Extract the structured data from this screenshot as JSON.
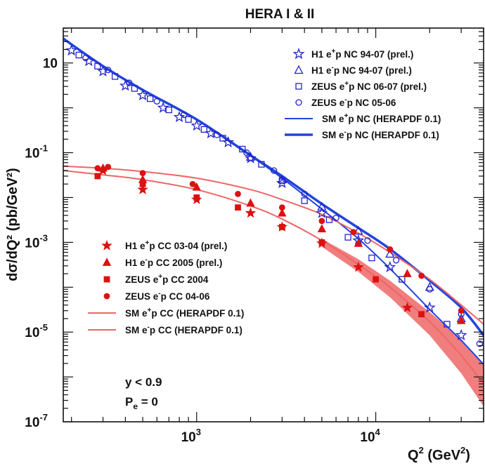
{
  "chart_data": {
    "type": "scatter",
    "title": "HERA I & II",
    "xlabel": "Q",
    "xlabel_sup": "2",
    "xlabel_unit": " (GeV",
    "xlabel_unit_sup": "2",
    "xlabel_close": ")",
    "ylabel": "dσ/dQ² (pb/GeV²)",
    "xscale": "log",
    "yscale": "log",
    "xlim": [
      180,
      40000
    ],
    "ylim": [
      1e-07,
      60
    ],
    "legend_placement_nc": "top-right",
    "legend_placement_cc": "bottom-left",
    "x_ticks": [
      {
        "value": 1000,
        "base": "10",
        "exp": "3"
      },
      {
        "value": 10000,
        "base": "10",
        "exp": "4"
      }
    ],
    "y_ticks": [
      {
        "value": 10,
        "label": "10",
        "exp": ""
      },
      {
        "value": 0.1,
        "label": "10",
        "exp": "-1"
      },
      {
        "value": 0.001,
        "label": "10",
        "exp": "-3"
      },
      {
        "value": 1e-05,
        "label": "10",
        "exp": "-5"
      },
      {
        "value": 1e-07,
        "label": "10",
        "exp": "-7"
      }
    ],
    "cuts": [
      {
        "text": "y < 0.9",
        "sub": ""
      },
      {
        "text": "P",
        "sub": "e",
        "rest": " = 0"
      }
    ],
    "series": [
      {
        "name_parts": [
          "H1 e",
          "+",
          "p NC 94-07 (prel.)"
        ],
        "marker": "star-open",
        "color": "#2222cc",
        "group": "nc",
        "x": [
          200,
          250,
          300,
          400,
          500,
          650,
          800,
          1000,
          1200,
          1500,
          2000,
          3000,
          5000,
          8000,
          12000,
          20000,
          30000
        ],
        "y": [
          19,
          11,
          6.5,
          3.1,
          1.9,
          1.0,
          0.62,
          0.4,
          0.27,
          0.17,
          0.075,
          0.021,
          0.0045,
          0.0011,
          0.00028,
          3.5e-05,
          8.5e-06
        ]
      },
      {
        "name_parts": [
          "H1 e",
          "-",
          "p NC 94-07 (prel.)"
        ],
        "marker": "triangle-open",
        "color": "#2222cc",
        "group": "nc",
        "x": [
          2000,
          3000,
          5000,
          8000,
          12000,
          20000,
          30000
        ],
        "y": [
          0.08,
          0.025,
          0.0062,
          0.0018,
          0.00055,
          0.0001,
          2e-05
        ]
      },
      {
        "name_parts": [
          "ZEUS e",
          "+",
          "p NC 06-07 (prel.)"
        ],
        "marker": "square-open",
        "color": "#2222cc",
        "group": "nc",
        "x": [
          220,
          280,
          350,
          450,
          550,
          700,
          900,
          1100,
          1400,
          1800,
          2300,
          3000,
          4000,
          5500,
          7000,
          9500,
          14000,
          25000
        ],
        "y": [
          15,
          8.5,
          5.0,
          2.7,
          1.6,
          0.9,
          0.55,
          0.33,
          0.21,
          0.12,
          0.055,
          0.024,
          0.0085,
          0.0032,
          0.0013,
          0.00045,
          0.00015,
          1.5e-05
        ]
      },
      {
        "name_parts": [
          "ZEUS e",
          "-",
          "p NC 05-06"
        ],
        "marker": "circle-open",
        "color": "#2222cc",
        "group": "nc",
        "x": [
          240,
          320,
          420,
          600,
          850,
          1300,
          1900,
          2700,
          4000,
          6000,
          9000,
          13000,
          20000,
          30000,
          38000
        ],
        "y": [
          13,
          7.0,
          3.6,
          1.4,
          0.7,
          0.25,
          0.1,
          0.04,
          0.012,
          0.0035,
          0.0011,
          0.0004,
          9e-05,
          2.5e-05,
          5.5e-06
        ]
      },
      {
        "name_parts": [
          "H1 e",
          "+",
          "p CC 03-04 (prel.)"
        ],
        "marker": "star-filled",
        "color": "#dd1111",
        "group": "cc",
        "x": [
          300,
          500,
          1000,
          2000,
          3000,
          5000,
          8000,
          15000
        ],
        "y": [
          0.04,
          0.015,
          0.009,
          0.0045,
          0.0022,
          0.00095,
          0.00028,
          3.5e-05
        ]
      },
      {
        "name_parts": [
          "H1 e",
          "-",
          "p CC 2005 (prel.)"
        ],
        "marker": "triangle-filled",
        "color": "#dd1111",
        "group": "cc",
        "x": [
          300,
          500,
          1000,
          2000,
          3000,
          5000,
          8000,
          15000,
          30000
        ],
        "y": [
          0.045,
          0.025,
          0.017,
          0.0075,
          0.0045,
          0.002,
          0.00095,
          0.0002,
          1.8e-05
        ]
      },
      {
        "name_parts": [
          "ZEUS e",
          "+",
          "p CC 2004"
        ],
        "marker": "square-filled",
        "color": "#dd1111",
        "group": "cc",
        "x": [
          280,
          500,
          1000,
          1700,
          3000,
          5000,
          10000,
          18000
        ],
        "y": [
          0.03,
          0.02,
          0.01,
          0.006,
          0.0022,
          0.001,
          0.00015,
          2.5e-05
        ]
      },
      {
        "name_parts": [
          "ZEUS e",
          "-",
          "p CC 04-06"
        ],
        "marker": "circle-filled",
        "color": "#dd1111",
        "group": "cc",
        "x": [
          280,
          320,
          500,
          950,
          1700,
          3000,
          5000,
          7500,
          12000,
          18000,
          30000
        ],
        "y": [
          0.045,
          0.048,
          0.035,
          0.02,
          0.012,
          0.006,
          0.003,
          0.0017,
          0.0007,
          0.00018,
          3e-05
        ]
      },
      {
        "name_parts": [
          "SM e",
          "+",
          "p NC (HERAPDF 0.1)"
        ],
        "marker": "line",
        "color": "#2244dd",
        "width": 2,
        "group": "nc",
        "x": [
          180,
          300,
          500,
          1000,
          2000,
          3000,
          5000,
          8000,
          12000,
          20000,
          30000,
          40000
        ],
        "y": [
          35,
          8.5,
          2.5,
          0.55,
          0.085,
          0.027,
          0.0055,
          0.0012,
          0.00026,
          3.2e-05,
          6.5e-06,
          1.9e-06
        ]
      },
      {
        "name_parts": [
          "SM e",
          "-",
          "p NC (HERAPDF 0.1)"
        ],
        "marker": "line",
        "color": "#2244dd",
        "width": 3.5,
        "group": "nc",
        "x": [
          180,
          300,
          500,
          1000,
          2000,
          3000,
          5000,
          8000,
          12000,
          20000,
          30000,
          40000
        ],
        "y": [
          35,
          8.5,
          2.5,
          0.55,
          0.087,
          0.03,
          0.0072,
          0.0021,
          0.00071,
          0.00014,
          3.5e-05,
          8.5e-06
        ]
      },
      {
        "name_parts": [
          "SM e",
          "+",
          "p CC (HERAPDF 0.1)"
        ],
        "marker": "line",
        "color": "#ee6666",
        "width": 2,
        "group": "cc",
        "x": [
          180,
          300,
          500,
          1000,
          2000,
          3000,
          5000,
          8000,
          12000,
          20000,
          30000,
          40000
        ],
        "y": [
          0.04,
          0.032,
          0.025,
          0.015,
          0.0065,
          0.0033,
          0.0011,
          0.00032,
          0.0001,
          1.7e-05,
          3e-06,
          7e-07
        ]
      },
      {
        "name_parts": [
          "SM e",
          "-",
          "p CC (HERAPDF 0.1)"
        ],
        "marker": "line",
        "color": "#ee6666",
        "width": 2,
        "group": "cc",
        "x": [
          180,
          300,
          500,
          1000,
          2000,
          3000,
          5000,
          8000,
          12000,
          20000,
          30000,
          40000
        ],
        "y": [
          0.05,
          0.045,
          0.038,
          0.027,
          0.015,
          0.009,
          0.0042,
          0.0016,
          0.0006,
          0.00015,
          4e-05,
          1.5e-05
        ]
      }
    ],
    "cc_band": {
      "x": [
        5000,
        8000,
        12000,
        20000,
        30000,
        40000
      ],
      "y_low": [
        0.0008,
        0.00022,
        6e-05,
        8.5e-06,
        1.2e-06,
        2.2e-07
      ],
      "y_high": [
        0.0012,
        0.00042,
        0.00014,
        2.8e-05,
        7e-06,
        1.8e-06
      ]
    }
  }
}
